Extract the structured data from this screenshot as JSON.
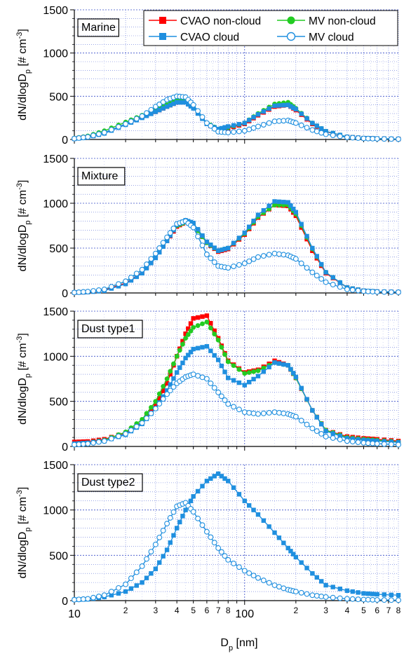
{
  "chart_data": [
    {
      "type": "line",
      "panel_label": "Marine",
      "ylabel": "dN/dlogD_p [# cm^-3]",
      "xlabel": "",
      "xscale": "log",
      "xlim": [
        10,
        800
      ],
      "ylim": [
        0,
        1500
      ],
      "yticks": [
        0,
        500,
        1000,
        1500
      ],
      "grid": true,
      "legend": {
        "placement": "top-right",
        "entries": [
          "CVAO non-cloud",
          "MV non-cloud",
          "CVAO cloud",
          "MV cloud"
        ]
      },
      "series": [
        {
          "name": "CVAO non-cloud",
          "color": "#ff0000",
          "marker": "square",
          "x": [
            10,
            12,
            15,
            20,
            25,
            30,
            35,
            40,
            45,
            50,
            60,
            70,
            80,
            100,
            120,
            150,
            180,
            200,
            250,
            300,
            400,
            500,
            600,
            800
          ],
          "y": [
            10,
            30,
            80,
            180,
            260,
            320,
            380,
            430,
            440,
            370,
            180,
            110,
            130,
            180,
            280,
            380,
            400,
            340,
            180,
            90,
            30,
            15,
            10,
            5
          ]
        },
        {
          "name": "MV non-cloud",
          "color": "#22cc22",
          "marker": "circle",
          "x": [
            10,
            12,
            15,
            20,
            25,
            30,
            35,
            40,
            45,
            50,
            60,
            70,
            80,
            100,
            120,
            150,
            180,
            200,
            250,
            300,
            400,
            500,
            600,
            800
          ],
          "y": [
            15,
            40,
            100,
            200,
            280,
            340,
            400,
            450,
            460,
            380,
            190,
            120,
            140,
            190,
            300,
            410,
            430,
            360,
            190,
            95,
            30,
            15,
            10,
            5
          ]
        },
        {
          "name": "CVAO cloud",
          "color": "#1f8fdf",
          "marker": "square",
          "x": [
            10,
            12,
            15,
            20,
            25,
            30,
            35,
            40,
            45,
            50,
            60,
            70,
            80,
            100,
            120,
            150,
            180,
            200,
            250,
            300,
            400,
            500,
            600,
            800
          ],
          "y": [
            8,
            25,
            70,
            170,
            250,
            320,
            380,
            430,
            430,
            360,
            180,
            120,
            150,
            190,
            290,
            390,
            400,
            350,
            190,
            95,
            30,
            15,
            10,
            5
          ]
        },
        {
          "name": "MV cloud",
          "color": "#1f8fdf",
          "marker": "open-circle",
          "x": [
            10,
            12,
            15,
            20,
            25,
            30,
            35,
            40,
            45,
            50,
            60,
            70,
            80,
            100,
            120,
            150,
            180,
            200,
            250,
            300,
            400,
            500,
            600,
            800
          ],
          "y": [
            10,
            30,
            80,
            180,
            270,
            380,
            460,
            500,
            490,
            400,
            190,
            90,
            80,
            100,
            150,
            210,
            220,
            190,
            110,
            60,
            25,
            12,
            8,
            4
          ]
        }
      ]
    },
    {
      "type": "line",
      "panel_label": "Mixture",
      "ylabel": "dN/dlogD_p [# cm^-3]",
      "xlabel": "",
      "xscale": "log",
      "xlim": [
        10,
        800
      ],
      "ylim": [
        0,
        1500
      ],
      "yticks": [
        0,
        500,
        1000,
        1500
      ],
      "grid": true,
      "series": [
        {
          "name": "CVAO non-cloud",
          "color": "#ff0000",
          "marker": "square",
          "x": [
            10,
            12,
            15,
            20,
            25,
            30,
            35,
            40,
            45,
            50,
            60,
            70,
            80,
            100,
            120,
            150,
            180,
            200,
            250,
            300,
            400,
            500,
            600,
            800
          ],
          "y": [
            5,
            10,
            30,
            110,
            230,
            400,
            580,
            740,
            790,
            760,
            560,
            460,
            490,
            650,
            840,
            980,
            970,
            860,
            470,
            220,
            60,
            25,
            15,
            10
          ]
        },
        {
          "name": "MV non-cloud",
          "color": "#22cc22",
          "marker": "circle",
          "x": [
            10,
            12,
            15,
            20,
            25,
            30,
            35,
            40,
            45,
            50,
            60,
            70,
            80,
            100,
            120,
            150,
            180,
            200,
            250,
            300,
            400,
            500,
            600,
            800
          ],
          "y": [
            5,
            15,
            40,
            130,
            260,
            430,
            600,
            750,
            790,
            760,
            560,
            470,
            500,
            660,
            850,
            980,
            980,
            880,
            490,
            230,
            60,
            25,
            15,
            10
          ]
        },
        {
          "name": "CVAO cloud",
          "color": "#1f8fdf",
          "marker": "square",
          "x": [
            10,
            12,
            15,
            20,
            25,
            30,
            35,
            40,
            45,
            50,
            60,
            70,
            80,
            100,
            120,
            150,
            180,
            200,
            250,
            300,
            400,
            500,
            600,
            800
          ],
          "y": [
            5,
            10,
            25,
            100,
            220,
            390,
            580,
            760,
            810,
            780,
            570,
            470,
            500,
            670,
            870,
            1020,
            1010,
            900,
            500,
            230,
            60,
            25,
            15,
            10
          ]
        },
        {
          "name": "MV cloud",
          "color": "#1f8fdf",
          "marker": "open-circle",
          "x": [
            10,
            12,
            15,
            20,
            25,
            30,
            35,
            40,
            45,
            50,
            60,
            70,
            80,
            100,
            120,
            150,
            180,
            200,
            250,
            300,
            400,
            500,
            600,
            800
          ],
          "y": [
            5,
            15,
            40,
            130,
            260,
            440,
            620,
            770,
            800,
            730,
            430,
            300,
            280,
            330,
            400,
            440,
            420,
            380,
            230,
            120,
            40,
            20,
            12,
            8
          ]
        }
      ]
    },
    {
      "type": "line",
      "panel_label": "Dust type1",
      "ylabel": "dN/dlogD_p [# cm^-3]",
      "xlabel": "",
      "xscale": "log",
      "xlim": [
        10,
        800
      ],
      "ylim": [
        0,
        1500
      ],
      "yticks": [
        0,
        500,
        1000,
        1500
      ],
      "grid": true,
      "series": [
        {
          "name": "CVAO non-cloud",
          "color": "#ff0000",
          "marker": "square",
          "x": [
            10,
            12,
            15,
            20,
            25,
            30,
            35,
            40,
            45,
            50,
            60,
            70,
            80,
            100,
            120,
            150,
            180,
            200,
            250,
            300,
            400,
            500,
            600,
            800
          ],
          "y": [
            50,
            55,
            80,
            150,
            270,
            450,
            700,
            1000,
            1250,
            1420,
            1450,
            1200,
            950,
            820,
            850,
            950,
            900,
            760,
            400,
            180,
            110,
            90,
            80,
            60
          ]
        },
        {
          "name": "MV non-cloud",
          "color": "#22cc22",
          "marker": "circle",
          "x": [
            10,
            12,
            15,
            20,
            25,
            30,
            35,
            40,
            45,
            50,
            60,
            70,
            80,
            100,
            120,
            150,
            180,
            200,
            250,
            300,
            400,
            500,
            600,
            800
          ],
          "y": [
            30,
            40,
            70,
            160,
            300,
            500,
            750,
            1000,
            1200,
            1320,
            1380,
            1180,
            940,
            810,
            840,
            930,
            900,
            760,
            400,
            180,
            100,
            80,
            70,
            50
          ]
        },
        {
          "name": "CVAO cloud",
          "color": "#1f8fdf",
          "marker": "square",
          "x": [
            10,
            12,
            15,
            20,
            25,
            30,
            35,
            40,
            45,
            50,
            60,
            70,
            80,
            100,
            120,
            150,
            180,
            200,
            250,
            300,
            400,
            500,
            600,
            800
          ],
          "y": [
            30,
            40,
            60,
            130,
            250,
            420,
            620,
            820,
            980,
            1080,
            1110,
            960,
            760,
            680,
            780,
            930,
            900,
            770,
            400,
            170,
            90,
            70,
            60,
            45
          ]
        },
        {
          "name": "MV cloud",
          "color": "#1f8fdf",
          "marker": "open-circle",
          "x": [
            10,
            12,
            15,
            20,
            25,
            30,
            35,
            40,
            45,
            50,
            60,
            70,
            80,
            100,
            120,
            150,
            180,
            200,
            250,
            300,
            400,
            500,
            600,
            800
          ],
          "y": [
            20,
            30,
            60,
            140,
            260,
            420,
            580,
            700,
            770,
            800,
            750,
            600,
            470,
            380,
            360,
            380,
            360,
            330,
            200,
            110,
            60,
            40,
            30,
            20
          ]
        }
      ]
    },
    {
      "type": "line",
      "panel_label": "Dust type2",
      "ylabel": "dN/dlogD_p [# cm^-3]",
      "xlabel": "D_p [nm]",
      "xscale": "log",
      "xlim": [
        10,
        800
      ],
      "ylim": [
        0,
        1500
      ],
      "yticks": [
        0,
        500,
        1000,
        1500
      ],
      "xticklabels": [
        "10",
        "2",
        "3",
        "4",
        "5",
        "6",
        "7",
        "8",
        "100",
        "2",
        "3",
        "4",
        "5",
        "6",
        "7",
        "8"
      ],
      "grid": true,
      "series": [
        {
          "name": "CVAO cloud",
          "color": "#1f8fdf",
          "marker": "square",
          "x": [
            10,
            12,
            15,
            20,
            25,
            30,
            35,
            40,
            45,
            50,
            60,
            70,
            80,
            100,
            120,
            150,
            180,
            200,
            250,
            300,
            400,
            500,
            600,
            800
          ],
          "y": [
            10,
            15,
            40,
            100,
            200,
            350,
            560,
            800,
            1000,
            1150,
            1320,
            1400,
            1320,
            1100,
            950,
            750,
            580,
            480,
            300,
            170,
            110,
            80,
            70,
            60
          ]
        },
        {
          "name": "MV cloud",
          "color": "#1f8fdf",
          "marker": "open-circle",
          "x": [
            10,
            12,
            15,
            20,
            25,
            30,
            35,
            40,
            45,
            50,
            60,
            70,
            80,
            100,
            120,
            150,
            180,
            200,
            250,
            300,
            400,
            500,
            600,
            800
          ],
          "y": [
            10,
            20,
            60,
            180,
            380,
            620,
            850,
            1040,
            1080,
            980,
            760,
            580,
            450,
            330,
            250,
            170,
            120,
            100,
            60,
            40,
            20,
            12,
            8,
            5
          ]
        }
      ]
    }
  ]
}
